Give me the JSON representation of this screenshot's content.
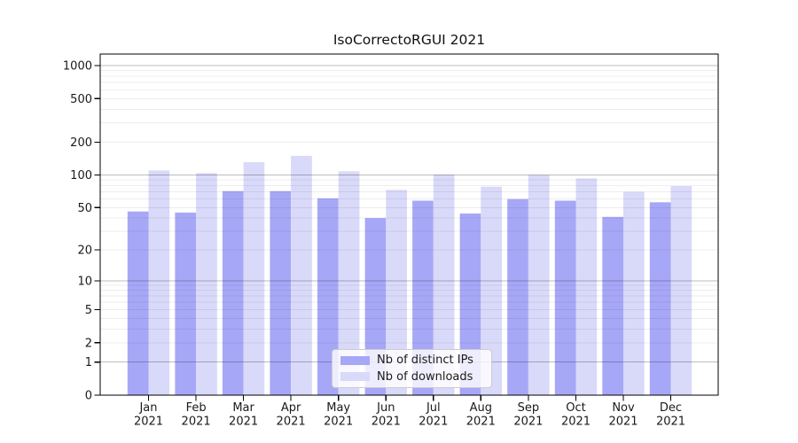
{
  "chart_data": {
    "type": "bar",
    "title": "IsoCorrectoRGUI 2021",
    "categories": [
      "Jan",
      "Feb",
      "Mar",
      "Apr",
      "May",
      "Jun",
      "Jul",
      "Aug",
      "Sep",
      "Oct",
      "Nov",
      "Dec"
    ],
    "year": "2021",
    "series": [
      {
        "name": "Nb of distinct IPs",
        "color": "#a7a7f7",
        "values": [
          46,
          45,
          71,
          71,
          61,
          40,
          58,
          44,
          60,
          58,
          41,
          56
        ]
      },
      {
        "name": "Nb of downloads",
        "color": "#d9d9f9",
        "values": [
          110,
          104,
          131,
          150,
          108,
          73,
          101,
          78,
          100,
          93,
          70,
          79
        ]
      }
    ],
    "xlabel": "",
    "ylabel": "",
    "yscale": "log1p",
    "yticks": [
      0,
      1,
      2,
      5,
      10,
      20,
      50,
      100,
      200,
      500,
      1000
    ],
    "ylim": [
      0,
      1274
    ],
    "grid": true,
    "grid_color": "#000000",
    "grid_major_alpha": 0.26,
    "grid_minor_alpha": 0.07,
    "axis_color": "#000000",
    "legend_position": "bottom-center"
  }
}
